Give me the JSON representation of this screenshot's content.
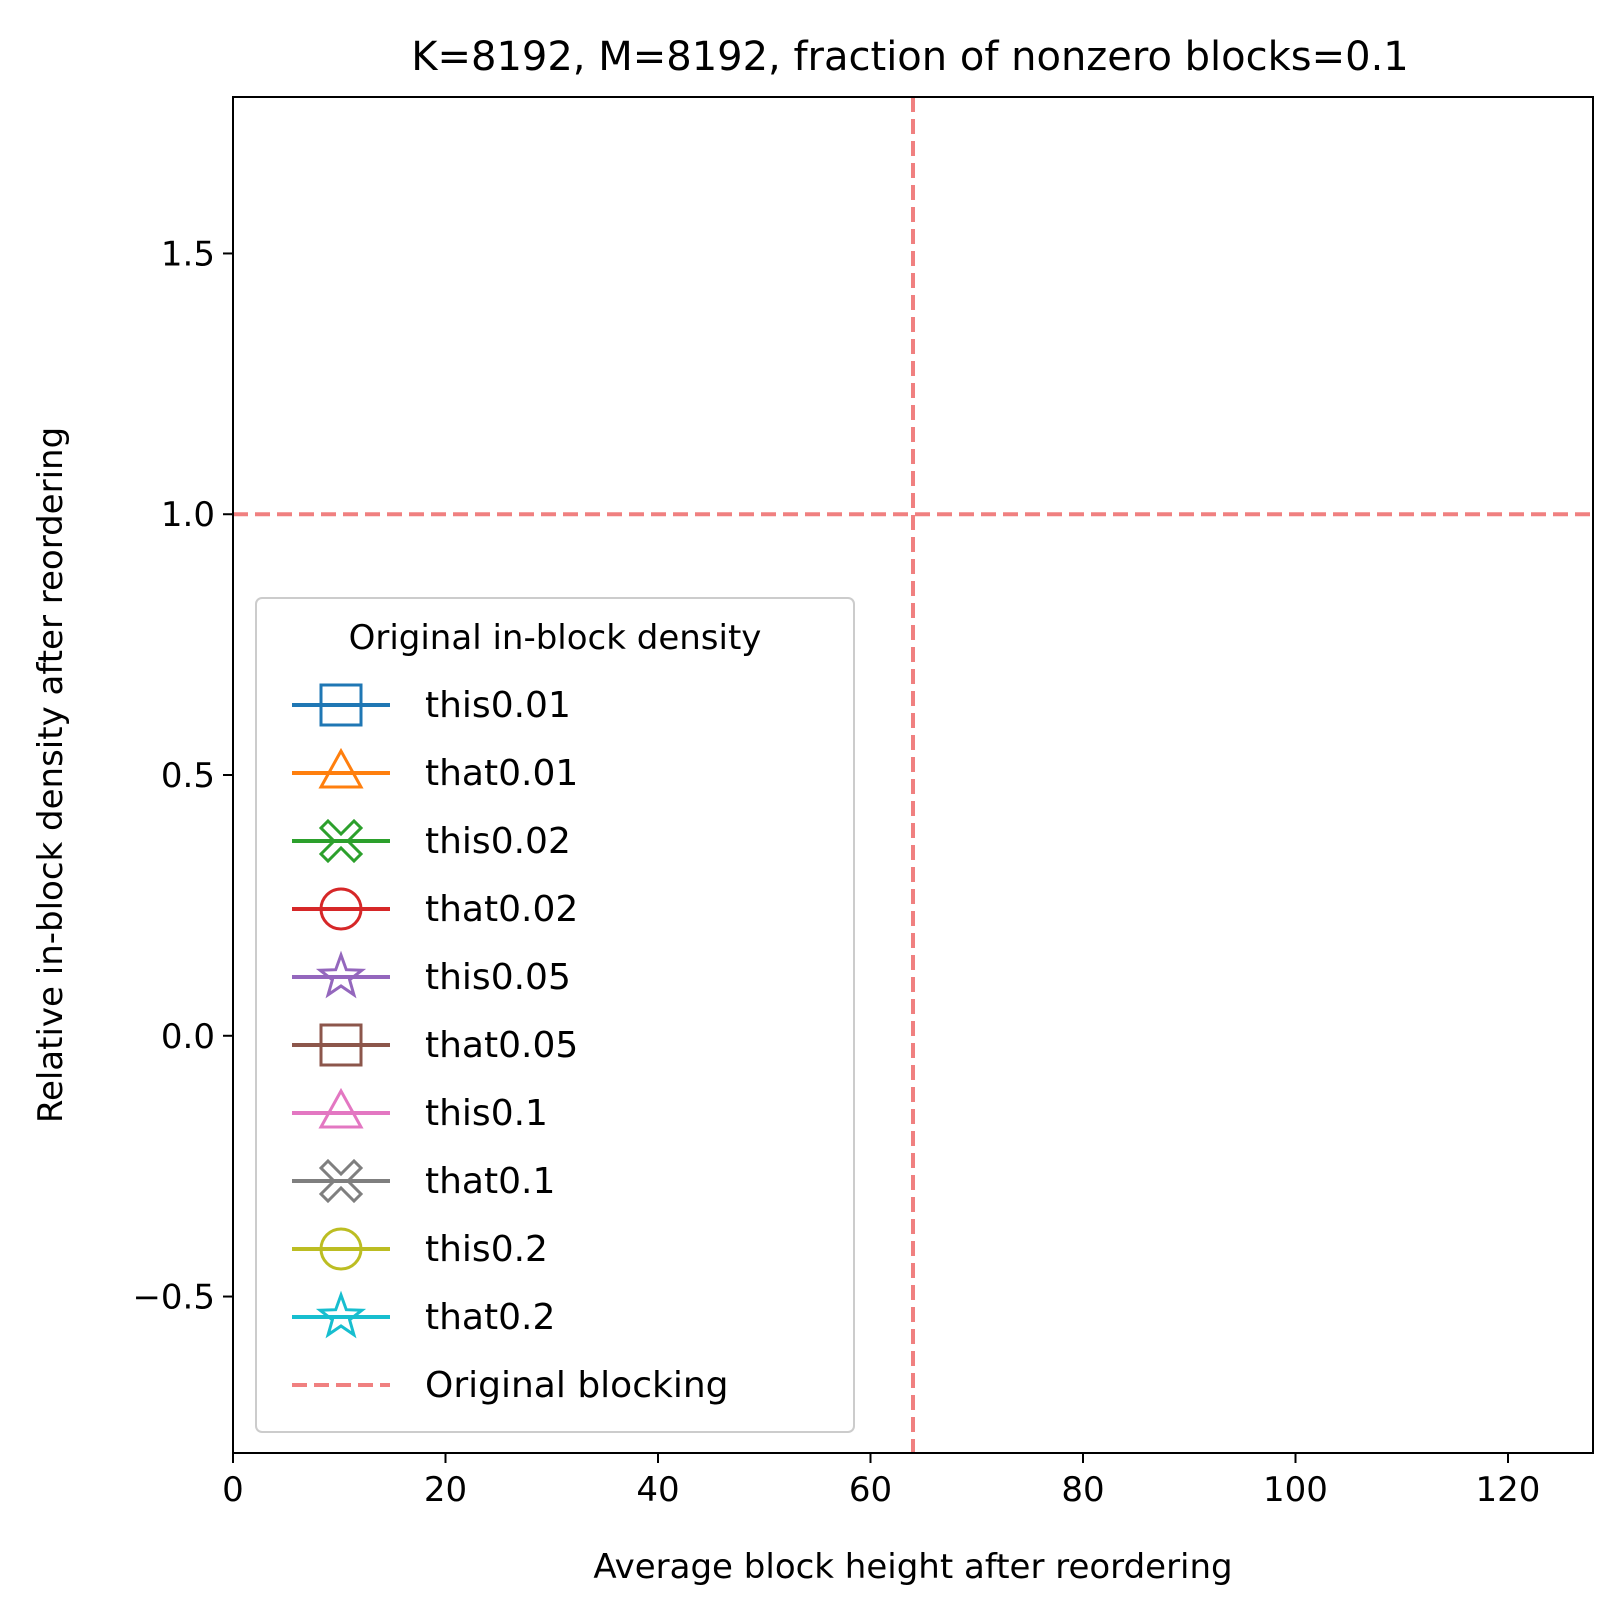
{
  "chart_data": {
    "type": "line",
    "title": "K=8192, M=8192, fraction of nonzero blocks=0.1",
    "xlabel": "Average block height after reordering",
    "ylabel": "Relative in-block density after reordering",
    "xlim": [
      0,
      128
    ],
    "ylim": [
      -0.8,
      1.8
    ],
    "xticks": [
      0,
      20,
      40,
      60,
      80,
      100,
      120
    ],
    "xtick_labels": [
      "0",
      "20",
      "40",
      "60",
      "80",
      "100",
      "120"
    ],
    "yticks": [
      -0.5,
      0,
      0.5,
      1,
      1.5
    ],
    "ytick_labels": [
      "−0.5",
      "0.0",
      "0.5",
      "1.0",
      "1.5"
    ],
    "grid": false,
    "legend": {
      "title": "Original in-block density",
      "placement": "lower-left",
      "entries": [
        {
          "label": "this0.01",
          "color": "#1f77b4",
          "marker": "square"
        },
        {
          "label": "that0.01",
          "color": "#ff7f0e",
          "marker": "triangle"
        },
        {
          "label": "this0.02",
          "color": "#2ca02c",
          "marker": "x-filled"
        },
        {
          "label": "that0.02",
          "color": "#d62728",
          "marker": "circle"
        },
        {
          "label": "this0.05",
          "color": "#9467bd",
          "marker": "star"
        },
        {
          "label": "that0.05",
          "color": "#8c564b",
          "marker": "square"
        },
        {
          "label": "this0.1",
          "color": "#e377c2",
          "marker": "triangle"
        },
        {
          "label": "that0.1",
          "color": "#7f7f7f",
          "marker": "x-filled"
        },
        {
          "label": "this0.2",
          "color": "#bcbd22",
          "marker": "circle"
        },
        {
          "label": "that0.2",
          "color": "#17becf",
          "marker": "star"
        },
        {
          "label": "Original blocking",
          "color": "#f08080",
          "marker": "dashed-line"
        }
      ]
    },
    "series": [
      {
        "name": "this0.01",
        "x": [],
        "y": []
      },
      {
        "name": "that0.01",
        "x": [],
        "y": []
      },
      {
        "name": "this0.02",
        "x": [],
        "y": []
      },
      {
        "name": "that0.02",
        "x": [],
        "y": []
      },
      {
        "name": "this0.05",
        "x": [],
        "y": []
      },
      {
        "name": "that0.05",
        "x": [],
        "y": []
      },
      {
        "name": "this0.1",
        "x": [],
        "y": []
      },
      {
        "name": "that0.1",
        "x": [],
        "y": []
      },
      {
        "name": "this0.2",
        "x": [],
        "y": []
      },
      {
        "name": "that0.2",
        "x": [],
        "y": []
      }
    ],
    "reference_lines": [
      {
        "name": "Original blocking",
        "orientation": "vertical",
        "value": 64,
        "color": "#f08080",
        "style": "dashed"
      },
      {
        "name": "Original blocking",
        "orientation": "horizontal",
        "value": 1.0,
        "color": "#f08080",
        "style": "dashed"
      }
    ]
  }
}
